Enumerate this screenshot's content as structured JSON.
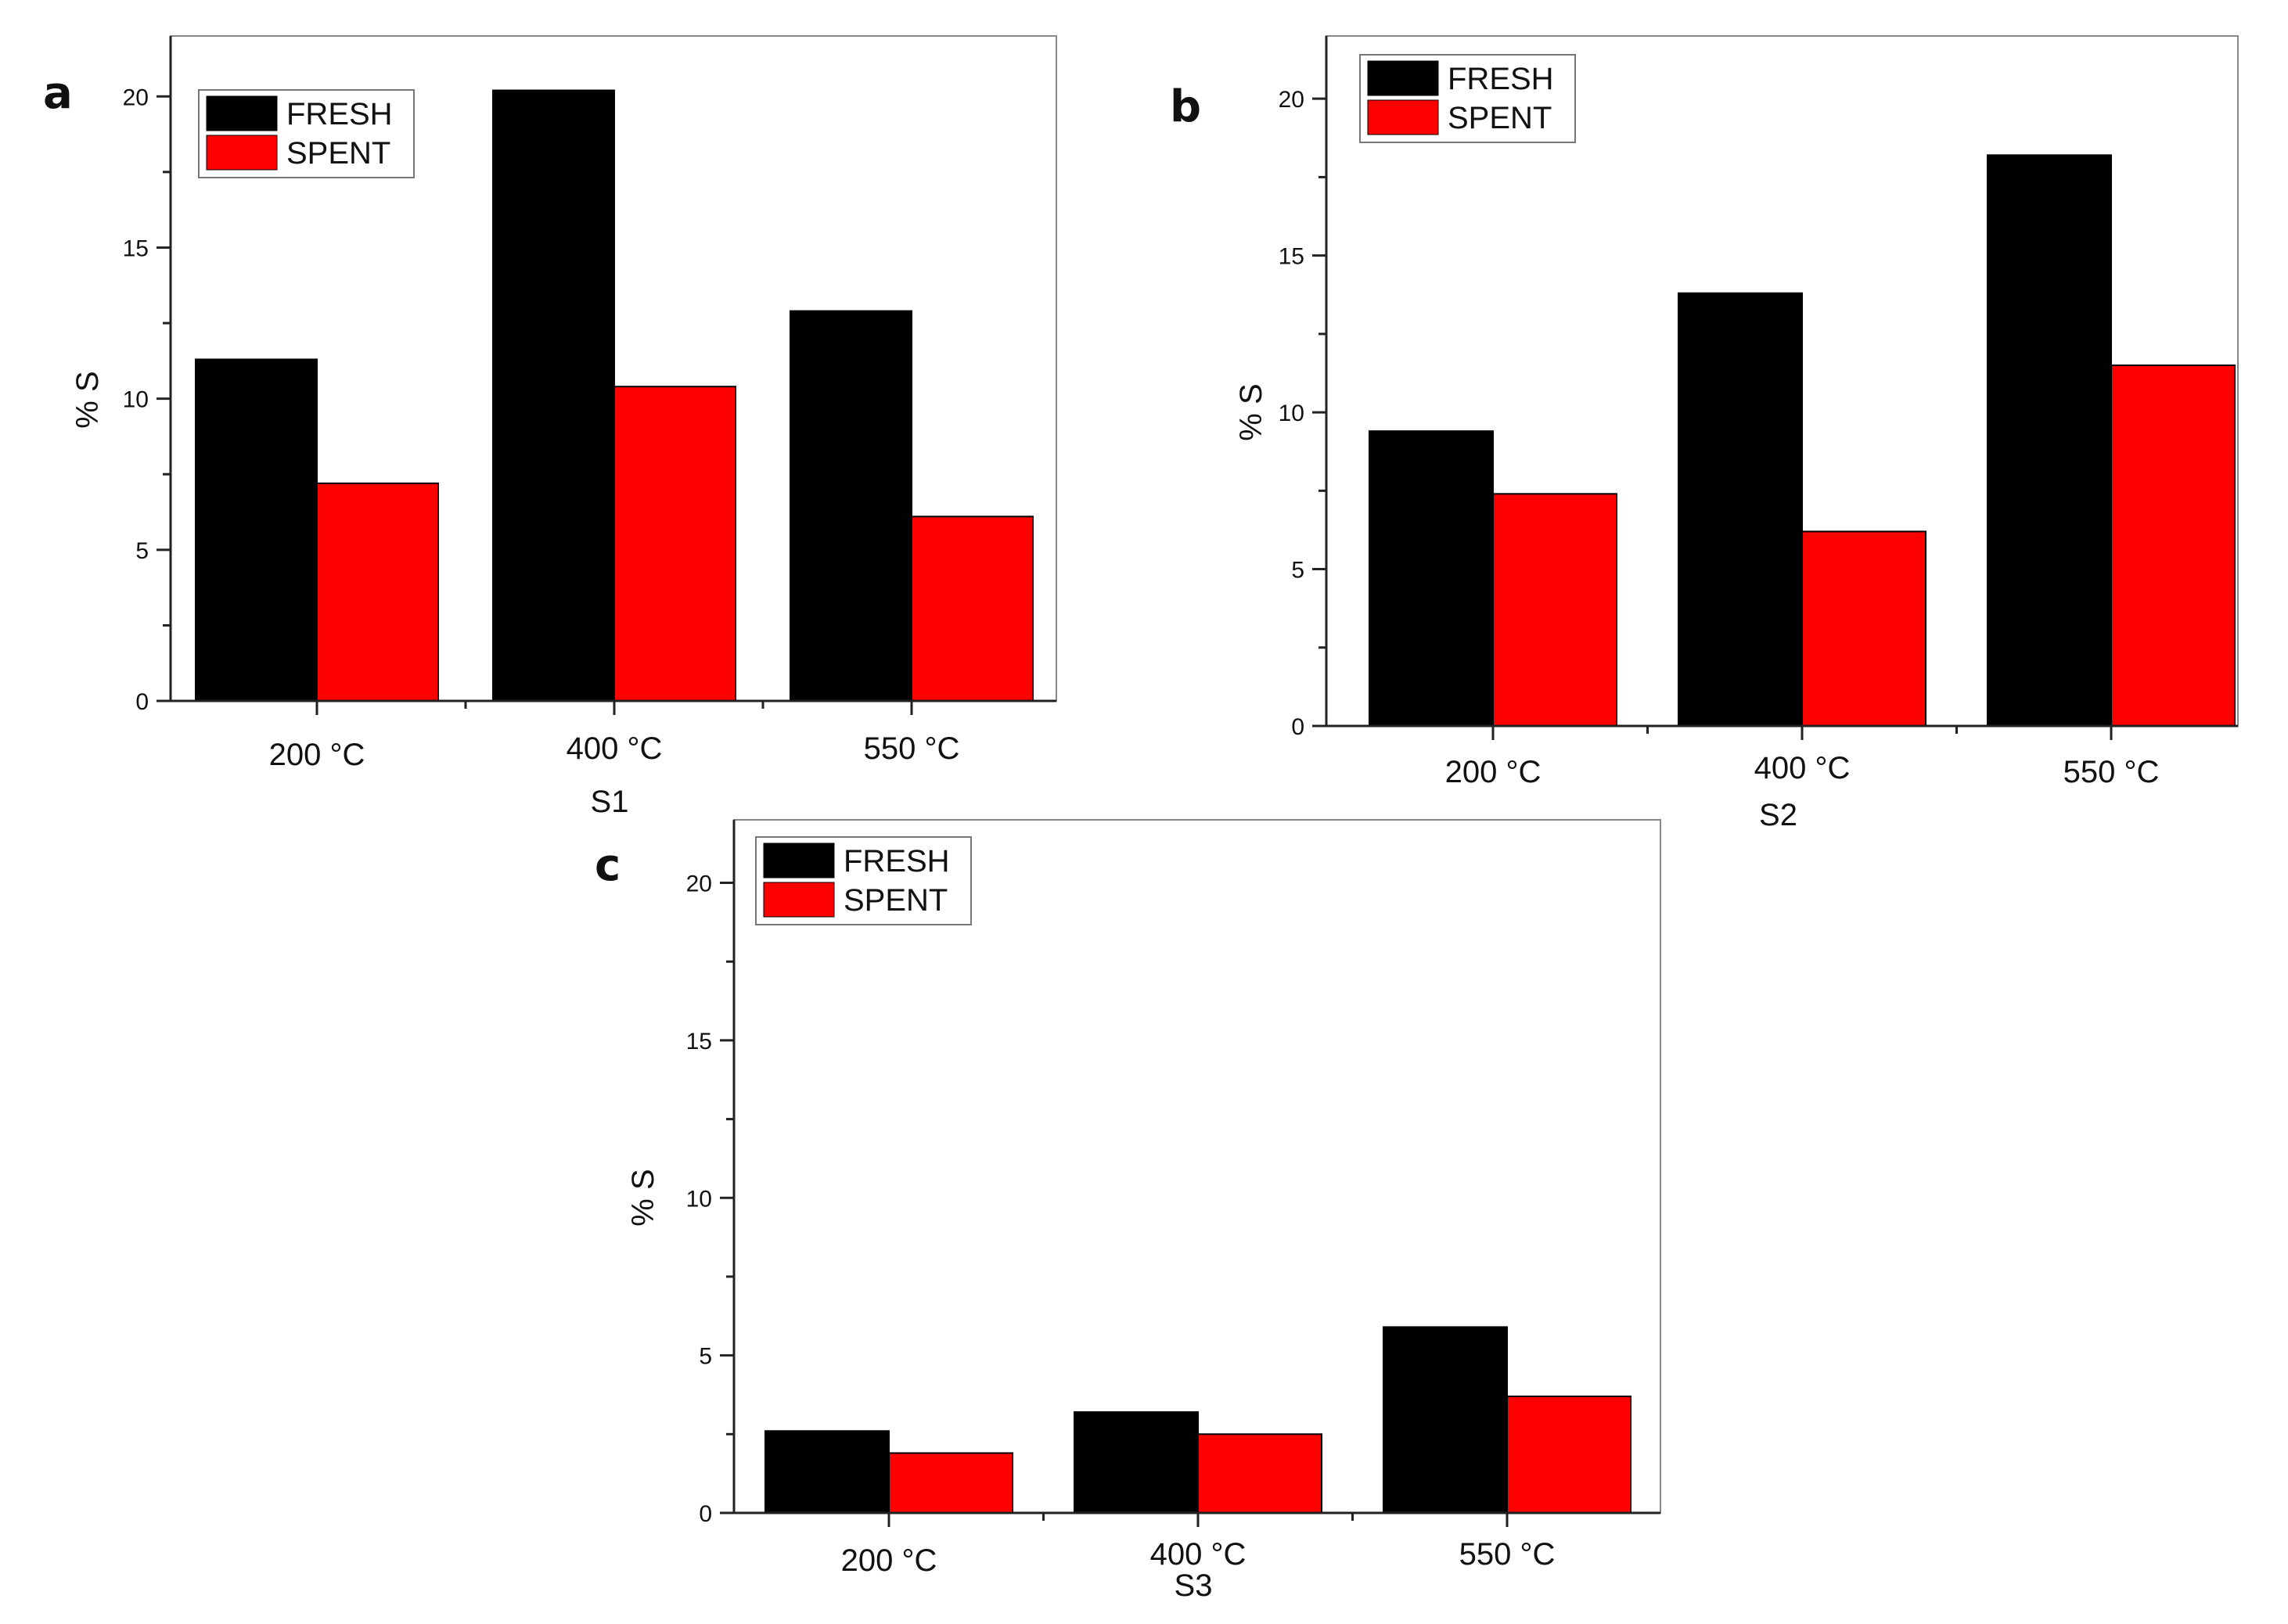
{
  "figure": {
    "panels": [
      "a",
      "b",
      "c"
    ]
  },
  "colors": {
    "fresh": "#000000",
    "spent": "#ff0000",
    "axis": "#222222",
    "frame": "#888888"
  },
  "chart_data": [
    {
      "type": "bar",
      "panel": "a",
      "categories": [
        "200 °C",
        "400 °C",
        "550 °C"
      ],
      "series": [
        {
          "name": "FRESH",
          "values": [
            11.3,
            20.2,
            12.9
          ]
        },
        {
          "name": "SPENT",
          "values": [
            7.2,
            10.4,
            6.1
          ]
        }
      ],
      "xlabel": "S1",
      "ylabel": "% S",
      "ylim": [
        0,
        22
      ],
      "yticks": [
        0,
        5,
        10,
        15,
        20
      ],
      "legend_position": "top-left"
    },
    {
      "type": "bar",
      "panel": "b",
      "categories": [
        "200 °C",
        "400 °C",
        "550 °C"
      ],
      "series": [
        {
          "name": "FRESH",
          "values": [
            9.4,
            13.8,
            18.2
          ]
        },
        {
          "name": "SPENT",
          "values": [
            7.4,
            6.2,
            11.5
          ]
        }
      ],
      "xlabel": "S2",
      "ylabel": "% S",
      "ylim": [
        0,
        22
      ],
      "yticks": [
        0,
        5,
        10,
        15,
        20
      ],
      "legend_position": "top-left"
    },
    {
      "type": "bar",
      "panel": "c",
      "categories": [
        "200 °C",
        "400 °C",
        "550 °C"
      ],
      "series": [
        {
          "name": "FRESH",
          "values": [
            2.6,
            3.2,
            5.9
          ]
        },
        {
          "name": "SPENT",
          "values": [
            1.9,
            2.5,
            3.7
          ]
        }
      ],
      "xlabel": "S3",
      "ylabel": "% S",
      "ylim": [
        0,
        22
      ],
      "yticks": [
        0,
        5,
        10,
        15,
        20
      ],
      "legend_position": "top-left"
    }
  ]
}
